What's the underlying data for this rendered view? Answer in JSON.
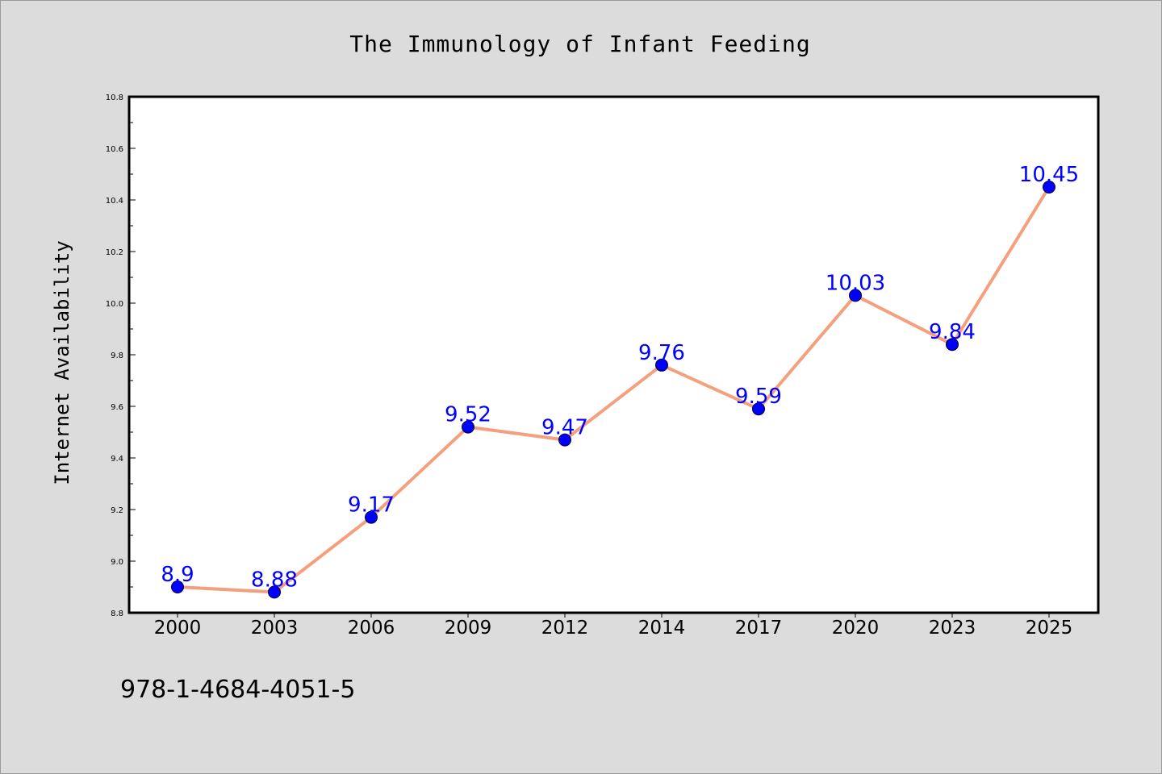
{
  "footer": {
    "isbn": "978-1-4684-4051-5"
  },
  "colors": {
    "background": "#dcdcdc",
    "plot_background": "#ffffff",
    "line": "#f4a07e",
    "marker": "#0000ff",
    "data_label": "#0000ff",
    "axis": "#000000"
  },
  "chart_data": {
    "type": "line",
    "title": "The Immunology of Infant Feeding",
    "xlabel": "",
    "ylabel": "Internet Availability",
    "categories": [
      "2000",
      "2003",
      "2006",
      "2009",
      "2012",
      "2014",
      "2017",
      "2020",
      "2023",
      "2025"
    ],
    "series": [
      {
        "values": [
          8.9,
          8.88,
          9.17,
          9.52,
          9.47,
          9.76,
          9.59,
          10.03,
          9.84,
          10.45
        ],
        "labels": [
          "8.9",
          "8.88",
          "9.17",
          "9.52",
          "9.47",
          "9.76",
          "9.59",
          "10.03",
          "9.84",
          "10.45"
        ]
      }
    ],
    "ylim": [
      8.8,
      10.8
    ],
    "yticks": [
      "8.8",
      "9.0",
      "9.2",
      "9.4",
      "9.6",
      "9.8",
      "10.0",
      "10.2",
      "10.4",
      "10.6",
      "10.8"
    ],
    "grid": false,
    "legend": "none"
  }
}
